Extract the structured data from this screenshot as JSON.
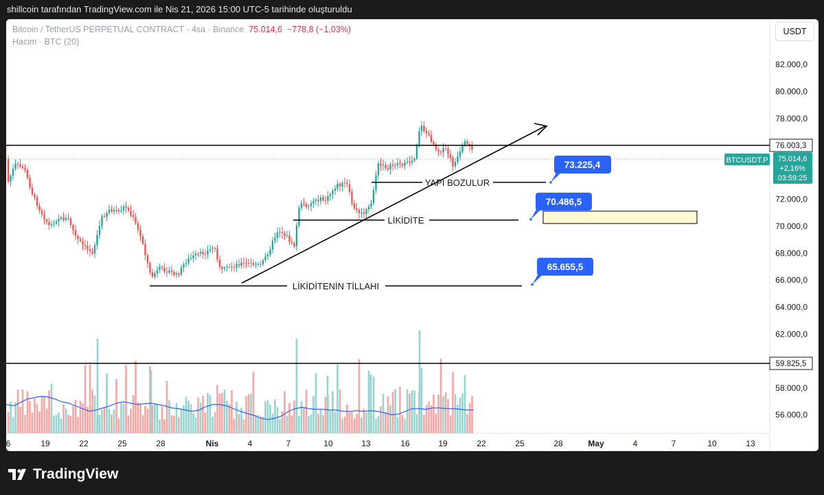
{
  "header": {
    "caption": "shillcoin tarafından TradingView.com ile Nis 21, 2026 15:00 UTC-5 tarihinde oluşturuldu"
  },
  "legend": {
    "symbol": "Bitcoin / TetherUS PERPETUAL CONTRACT · 4sa · Binance",
    "price": "75.014,6",
    "change": "−778,8 (−1,03%)",
    "volume_label": "Hacim · BTC (20)"
  },
  "toolbar": {
    "currency_button": "USDT"
  },
  "price_axis": {
    "ticks": [
      {
        "label": "82.000,0",
        "value": 82000
      },
      {
        "label": "80.000,0",
        "value": 80000
      },
      {
        "label": "78.000,0",
        "value": 78000
      },
      {
        "label": "72.000,0",
        "value": 72000
      },
      {
        "label": "70.000,0",
        "value": 70000
      },
      {
        "label": "68.000,0",
        "value": 68000
      },
      {
        "label": "66.000,0",
        "value": 66000
      },
      {
        "label": "64.000,0",
        "value": 64000
      },
      {
        "label": "62.000,0",
        "value": 62000
      },
      {
        "label": "58.000,0",
        "value": 58000
      },
      {
        "label": "56.000,0",
        "value": 56000
      }
    ],
    "level_labels": [
      {
        "label": "76.003,3",
        "value": 76003.3
      },
      {
        "label": "59.825,5",
        "value": 59825.5
      }
    ],
    "symbol_tag": "BTCUSDT.P",
    "last_price": "75.014,6",
    "last_change": "+2,16%",
    "countdown": "03:59:25"
  },
  "time_axis": {
    "ticks": [
      "6",
      "19",
      "22",
      "25",
      "28",
      "Nis",
      "4",
      "7",
      "10",
      "13",
      "16",
      "19",
      "22",
      "25",
      "28",
      "May",
      "4",
      "7",
      "10",
      "13"
    ]
  },
  "annotations": {
    "text_structure": "YAPI BOZULUR",
    "text_liquidity": "LİKİDİTE",
    "text_liquidity_grab": "LİKİDİTENİN TİLLAHI",
    "callout_1": "73.225,4",
    "callout_2": "70.486,5",
    "callout_3": "65.655,5"
  },
  "colors": {
    "up": "#26a69a",
    "down": "#ef5350",
    "volume_up": "#95d3cf",
    "volume_down": "#f3a6a4",
    "ma_line": "#2962ff",
    "callout": "#2962ff",
    "zone_fill": "#fff9d2",
    "price_tag": "#26a69a"
  },
  "footer": {
    "brand": "TradingView"
  }
}
